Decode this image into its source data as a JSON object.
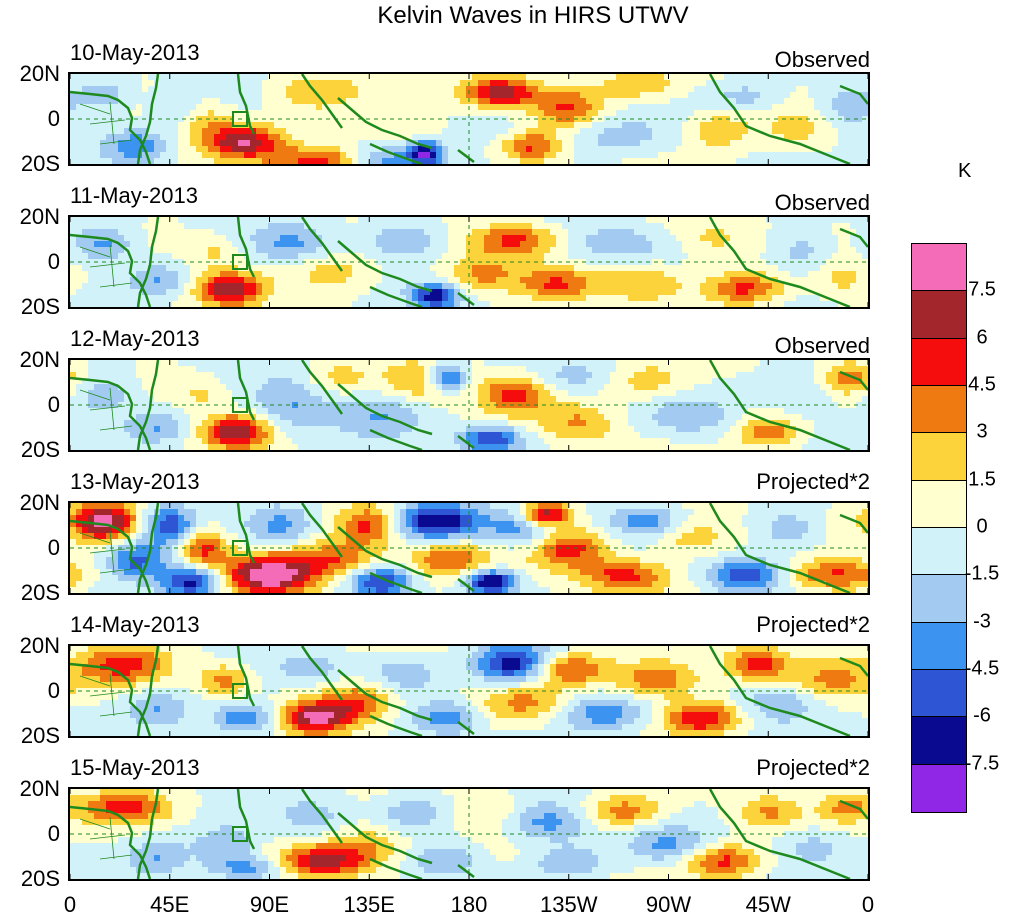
{
  "title": "Kelvin Waves in HIRS UTWV",
  "chart_data": {
    "type": "heatmap",
    "title": "Kelvin Waves in HIRS UTWV",
    "xlabel": "",
    "ylabel": "",
    "x_ticks": [
      "0",
      "45E",
      "90E",
      "135E",
      "180",
      "135W",
      "90W",
      "45W",
      "0"
    ],
    "y_ticks": [
      "20N",
      "0",
      "20S"
    ],
    "xlim": [
      0,
      360
    ],
    "ylim": [
      -20,
      20
    ],
    "colorbar": {
      "unit": "K",
      "levels": [
        "7.5",
        "6",
        "4.5",
        "3",
        "1.5",
        "0",
        "-1.5",
        "-3",
        "-4.5",
        "-6",
        "-7.5"
      ],
      "colors": [
        "#f46cb8",
        "#a3262c",
        "#f50d0d",
        "#f07a12",
        "#fcd33a",
        "#ffffd0",
        "#d2f2fa",
        "#a3cbf2",
        "#3c94f0",
        "#2d55d4",
        "#0a0a91",
        "#9026e6"
      ]
    },
    "panels": [
      {
        "date": "10-May-2013",
        "kind": "Observed",
        "blobs": [
          [
            30,
            -12,
            10,
            5,
            -4
          ],
          [
            15,
            10,
            9,
            5,
            -3
          ],
          [
            50,
            5,
            8,
            7,
            -2
          ],
          [
            78,
            -10,
            12,
            5,
            7
          ],
          [
            60,
            0,
            8,
            6,
            2.5
          ],
          [
            110,
            12,
            14,
            6,
            3
          ],
          [
            112,
            -18,
            16,
            4,
            5
          ],
          [
            150,
            -5,
            15,
            6,
            2
          ],
          [
            160,
            -15,
            6,
            4,
            -8
          ],
          [
            140,
            -18,
            10,
            4,
            -4
          ],
          [
            195,
            12,
            12,
            5,
            7
          ],
          [
            190,
            -5,
            14,
            6,
            -2
          ],
          [
            208,
            -12,
            10,
            5,
            5
          ],
          [
            225,
            5,
            10,
            6,
            4.5
          ],
          [
            255,
            15,
            14,
            5,
            2.5
          ],
          [
            245,
            -8,
            18,
            6,
            -2
          ],
          [
            292,
            -5,
            10,
            6,
            3
          ],
          [
            305,
            10,
            12,
            5,
            -2
          ],
          [
            330,
            -5,
            14,
            7,
            2
          ],
          [
            350,
            5,
            10,
            8,
            -3
          ]
        ]
      },
      {
        "date": "11-May-2013",
        "kind": "Observed",
        "blobs": [
          [
            15,
            8,
            10,
            6,
            -4
          ],
          [
            40,
            -8,
            10,
            5,
            -3
          ],
          [
            72,
            -12,
            10,
            5,
            7
          ],
          [
            65,
            5,
            8,
            5,
            2
          ],
          [
            100,
            8,
            12,
            6,
            -3
          ],
          [
            120,
            -5,
            14,
            6,
            2.5
          ],
          [
            150,
            10,
            14,
            6,
            -3
          ],
          [
            165,
            -15,
            8,
            4,
            -7
          ],
          [
            185,
            -5,
            12,
            6,
            3
          ],
          [
            200,
            10,
            14,
            5,
            5
          ],
          [
            220,
            -10,
            12,
            5,
            4.5
          ],
          [
            245,
            8,
            16,
            6,
            -2.5
          ],
          [
            258,
            -8,
            14,
            6,
            3
          ],
          [
            290,
            10,
            12,
            6,
            2
          ],
          [
            305,
            -12,
            12,
            5,
            5
          ],
          [
            330,
            5,
            10,
            7,
            -2.5
          ],
          [
            348,
            -8,
            10,
            6,
            2
          ]
        ]
      },
      {
        "date": "12-May-2013",
        "kind": "Observed",
        "blobs": [
          [
            15,
            5,
            10,
            7,
            -3
          ],
          [
            40,
            -10,
            10,
            5,
            -3
          ],
          [
            75,
            -12,
            10,
            5,
            7
          ],
          [
            60,
            5,
            8,
            5,
            2
          ],
          [
            100,
            0,
            12,
            8,
            -3
          ],
          [
            120,
            12,
            10,
            5,
            2
          ],
          [
            140,
            -5,
            14,
            7,
            -2.5
          ],
          [
            160,
            10,
            12,
            6,
            3
          ],
          [
            170,
            12,
            6,
            4,
            -7
          ],
          [
            190,
            -15,
            10,
            4,
            -6
          ],
          [
            200,
            5,
            10,
            6,
            5
          ],
          [
            230,
            12,
            14,
            5,
            -2
          ],
          [
            230,
            -8,
            12,
            6,
            3
          ],
          [
            260,
            10,
            14,
            6,
            2.5
          ],
          [
            280,
            -5,
            14,
            6,
            -2.5
          ],
          [
            315,
            -12,
            10,
            5,
            4.5
          ],
          [
            330,
            5,
            12,
            7,
            -2
          ],
          [
            352,
            12,
            8,
            5,
            4
          ]
        ]
      },
      {
        "date": "13-May-2013",
        "kind": "Projected*2",
        "blobs": [
          [
            15,
            12,
            10,
            6,
            8
          ],
          [
            30,
            -5,
            10,
            6,
            -5
          ],
          [
            45,
            10,
            8,
            6,
            -6
          ],
          [
            60,
            0,
            8,
            6,
            5
          ],
          [
            55,
            -15,
            10,
            5,
            -7
          ],
          [
            90,
            -12,
            14,
            6,
            9
          ],
          [
            95,
            10,
            10,
            6,
            -3
          ],
          [
            120,
            -5,
            14,
            6,
            4.5
          ],
          [
            135,
            10,
            10,
            6,
            5
          ],
          [
            140,
            -15,
            10,
            5,
            -6
          ],
          [
            165,
            12,
            14,
            6,
            -8
          ],
          [
            170,
            -5,
            14,
            6,
            4.5
          ],
          [
            190,
            -15,
            8,
            4,
            -8
          ],
          [
            205,
            8,
            12,
            6,
            -4
          ],
          [
            215,
            15,
            8,
            4,
            8
          ],
          [
            225,
            0,
            12,
            6,
            5
          ],
          [
            250,
            -12,
            14,
            5,
            5
          ],
          [
            260,
            12,
            12,
            5,
            -4
          ],
          [
            280,
            5,
            12,
            6,
            3
          ],
          [
            305,
            -12,
            12,
            5,
            -6
          ],
          [
            325,
            8,
            10,
            6,
            -3
          ],
          [
            345,
            -12,
            16,
            5,
            5
          ]
        ]
      },
      {
        "date": "14-May-2013",
        "kind": "Projected*2",
        "blobs": [
          [
            25,
            12,
            14,
            6,
            5
          ],
          [
            40,
            -8,
            10,
            6,
            -3
          ],
          [
            70,
            5,
            8,
            5,
            4
          ],
          [
            80,
            -12,
            12,
            5,
            -5
          ],
          [
            110,
            -12,
            12,
            5,
            8
          ],
          [
            110,
            10,
            12,
            5,
            -2
          ],
          [
            130,
            -5,
            12,
            6,
            5
          ],
          [
            150,
            8,
            12,
            6,
            -3
          ],
          [
            170,
            -12,
            10,
            5,
            -4
          ],
          [
            200,
            12,
            12,
            6,
            -7
          ],
          [
            205,
            -5,
            14,
            6,
            3
          ],
          [
            225,
            10,
            12,
            5,
            5
          ],
          [
            240,
            -10,
            14,
            6,
            -4
          ],
          [
            265,
            5,
            14,
            6,
            4.5
          ],
          [
            285,
            -12,
            12,
            5,
            6
          ],
          [
            310,
            12,
            10,
            5,
            5
          ],
          [
            320,
            -5,
            12,
            6,
            -3
          ],
          [
            345,
            5,
            14,
            6,
            3
          ]
        ]
      },
      {
        "date": "15-May-2013",
        "kind": "Projected*2",
        "blobs": [
          [
            25,
            12,
            14,
            5,
            5
          ],
          [
            40,
            -10,
            10,
            6,
            -3
          ],
          [
            70,
            -5,
            10,
            6,
            -3
          ],
          [
            80,
            -15,
            12,
            4,
            -4
          ],
          [
            115,
            -12,
            14,
            5,
            7
          ],
          [
            110,
            8,
            12,
            6,
            -2
          ],
          [
            135,
            -5,
            12,
            6,
            3
          ],
          [
            155,
            10,
            12,
            6,
            -3
          ],
          [
            170,
            -12,
            10,
            5,
            -3
          ],
          [
            190,
            10,
            12,
            6,
            2
          ],
          [
            215,
            5,
            14,
            6,
            -4
          ],
          [
            225,
            -12,
            12,
            5,
            -3
          ],
          [
            250,
            10,
            12,
            5,
            4
          ],
          [
            270,
            -5,
            12,
            6,
            -3
          ],
          [
            295,
            -12,
            12,
            5,
            5
          ],
          [
            315,
            10,
            10,
            5,
            3
          ],
          [
            335,
            -5,
            12,
            6,
            -2
          ],
          [
            350,
            12,
            8,
            5,
            3
          ]
        ]
      }
    ]
  }
}
